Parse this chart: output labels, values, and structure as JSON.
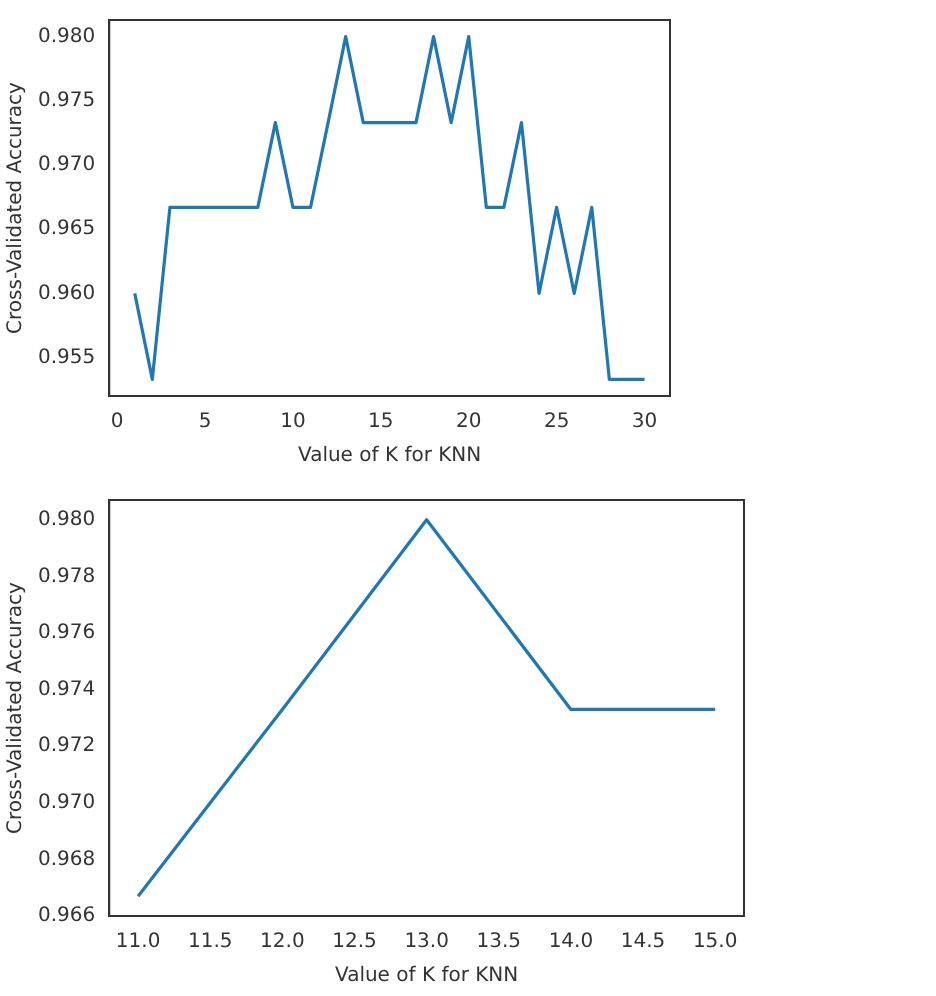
{
  "chart_data": [
    {
      "type": "line",
      "xlabel": "Value of K for KNN",
      "ylabel": "Cross-Validated Accuracy",
      "x": [
        1,
        2,
        3,
        4,
        5,
        6,
        7,
        8,
        9,
        10,
        11,
        12,
        13,
        14,
        15,
        16,
        17,
        18,
        19,
        20,
        21,
        22,
        23,
        24,
        25,
        26,
        27,
        28,
        29,
        30
      ],
      "series": [
        {
          "color": "#1f77b4",
          "values": [
            0.96,
            0.9533,
            0.9667,
            0.9667,
            0.9667,
            0.9667,
            0.9667,
            0.9667,
            0.9733,
            0.9667,
            0.9667,
            0.9733,
            0.98,
            0.9733,
            0.9733,
            0.9733,
            0.9733,
            0.98,
            0.9733,
            0.98,
            0.9667,
            0.9667,
            0.9733,
            0.96,
            0.9667,
            0.96,
            0.9667,
            0.9533,
            0.9533,
            0.9533
          ]
        }
      ],
      "xlim": [
        -0.45,
        31.45
      ],
      "xticks": [
        0,
        5,
        10,
        15,
        20,
        25,
        30
      ],
      "ylim": [
        0.952,
        0.9813
      ],
      "yticks": [
        {
          "value": 0.955,
          "label": "0.955"
        },
        {
          "value": 0.96,
          "label": "0.960"
        },
        {
          "value": 0.965,
          "label": "0.965"
        },
        {
          "value": 0.97,
          "label": "0.970"
        },
        {
          "value": 0.975,
          "label": "0.975"
        },
        {
          "value": 0.98,
          "label": "0.980"
        }
      ],
      "grid": false,
      "legend": false
    },
    {
      "type": "line",
      "xlabel": "Value of K for KNN",
      "ylabel": "Cross-Validated Accuracy",
      "x": [
        11,
        12,
        13,
        14,
        15
      ],
      "series": [
        {
          "color": "#1f77b4",
          "values": [
            0.9667,
            0.9733,
            0.98,
            0.9733,
            0.9733
          ]
        }
      ],
      "xlim": [
        10.8,
        15.2
      ],
      "xticks": [
        {
          "value": 11,
          "label": "11.0"
        },
        {
          "value": 11.5,
          "label": "11.5"
        },
        {
          "value": 12,
          "label": "12.0"
        },
        {
          "value": 12.5,
          "label": "12.5"
        },
        {
          "value": 13,
          "label": "13.0"
        },
        {
          "value": 13.5,
          "label": "13.5"
        },
        {
          "value": 14,
          "label": "14.0"
        },
        {
          "value": 14.5,
          "label": "14.5"
        },
        {
          "value": 15,
          "label": "15.0"
        }
      ],
      "ylim": [
        0.966,
        0.9807
      ],
      "yticks": [
        {
          "value": 0.966,
          "label": "0.966"
        },
        {
          "value": 0.968,
          "label": "0.968"
        },
        {
          "value": 0.97,
          "label": "0.970"
        },
        {
          "value": 0.972,
          "label": "0.972"
        },
        {
          "value": 0.974,
          "label": "0.974"
        },
        {
          "value": 0.976,
          "label": "0.976"
        },
        {
          "value": 0.978,
          "label": "0.978"
        },
        {
          "value": 0.98,
          "label": "0.980"
        }
      ],
      "grid": false,
      "legend": false
    }
  ]
}
